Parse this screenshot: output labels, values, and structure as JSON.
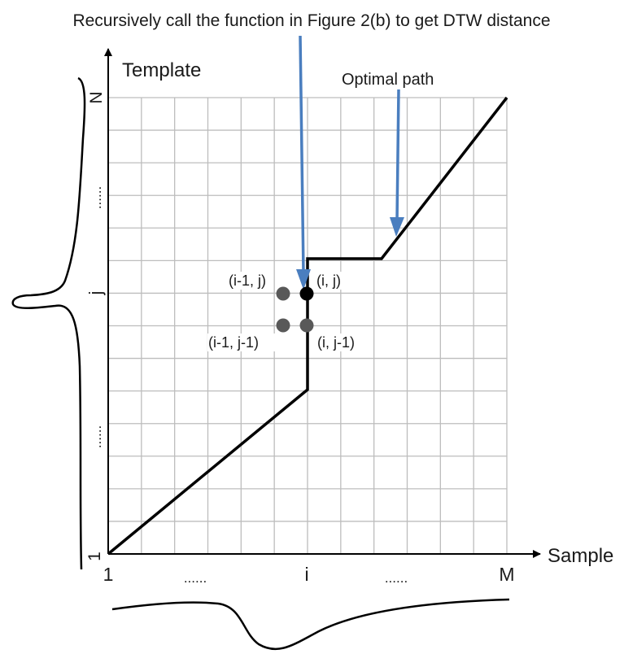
{
  "figure": {
    "top_annotation": "Recursively call the function in Figure 2(b) to get DTW distance",
    "optimal_path_label": "Optimal path",
    "y_axis_label": "Template",
    "x_axis_label": "Sample",
    "y_ticks": {
      "top": "N",
      "upper_dots": "......",
      "mid": "j",
      "lower_dots": "......",
      "bottom": "1"
    },
    "x_ticks": {
      "start": "1",
      "left_dots": "......",
      "mid": "i",
      "right_dots": "......",
      "end": "M"
    },
    "cells": {
      "prev_same_row": "(i-1, j)",
      "current": "(i, j)",
      "prev_diag": "(i-1, j-1)",
      "same_col_below": "(i, j-1)"
    },
    "colors": {
      "arrow": "#4a7ebf",
      "grid": "#bdbdbd",
      "path": "#000000",
      "node_gray": "#595959",
      "node_current": "#000000"
    }
  }
}
